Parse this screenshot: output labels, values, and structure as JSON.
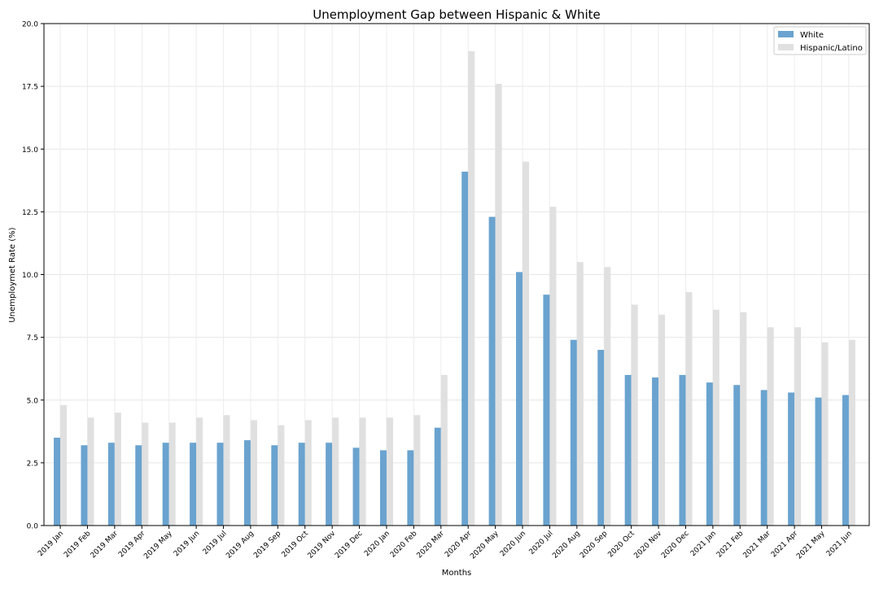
{
  "chart_data": {
    "type": "bar",
    "title": "Unemployment Gap between Hispanic & White",
    "xlabel": "Months",
    "ylabel": "Unemploymet Rate (%)",
    "ylim": [
      0,
      20
    ],
    "yticks": [
      "0.0",
      "2.5",
      "5.0",
      "7.5",
      "10.0",
      "12.5",
      "15.0",
      "17.5",
      "20.0"
    ],
    "grid": true,
    "legend_position": "top-right",
    "categories": [
      "2019 Jan",
      "2019 Feb",
      "2019 Mar",
      "2019 Apr",
      "2019 May",
      "2019 Jun",
      "2019 Jul",
      "2019 Aug",
      "2019 Sep",
      "2019 Oct",
      "2019 Nov",
      "2019 Dec",
      "2020 Jan",
      "2020 Feb",
      "2020 Mar",
      "2020 Apr",
      "2020 May",
      "2020 Jun",
      "2020 Jul",
      "2020 Aug",
      "2020 Sep",
      "2020 Oct",
      "2020 Nov",
      "2020 Dec",
      "2021 Jan",
      "2021 Feb",
      "2021 Mar",
      "2021 Apr",
      "2021 May",
      "2021 Jun"
    ],
    "series": [
      {
        "name": "White",
        "color": "#6aa3cf",
        "values": [
          3.5,
          3.2,
          3.3,
          3.2,
          3.3,
          3.3,
          3.3,
          3.4,
          3.2,
          3.3,
          3.3,
          3.1,
          3.0,
          3.0,
          3.9,
          14.1,
          12.3,
          10.1,
          9.2,
          7.4,
          7.0,
          6.0,
          5.9,
          6.0,
          5.7,
          5.6,
          5.4,
          5.3,
          5.1,
          5.2
        ]
      },
      {
        "name": "Hispanic/Latino",
        "color": "#e0e0e0",
        "values": [
          4.8,
          4.3,
          4.5,
          4.1,
          4.1,
          4.3,
          4.4,
          4.2,
          4.0,
          4.2,
          4.3,
          4.3,
          4.3,
          4.4,
          6.0,
          18.9,
          17.6,
          14.5,
          12.7,
          10.5,
          10.3,
          8.8,
          8.4,
          9.3,
          8.6,
          8.5,
          7.9,
          7.9,
          7.3,
          7.4
        ]
      }
    ]
  }
}
